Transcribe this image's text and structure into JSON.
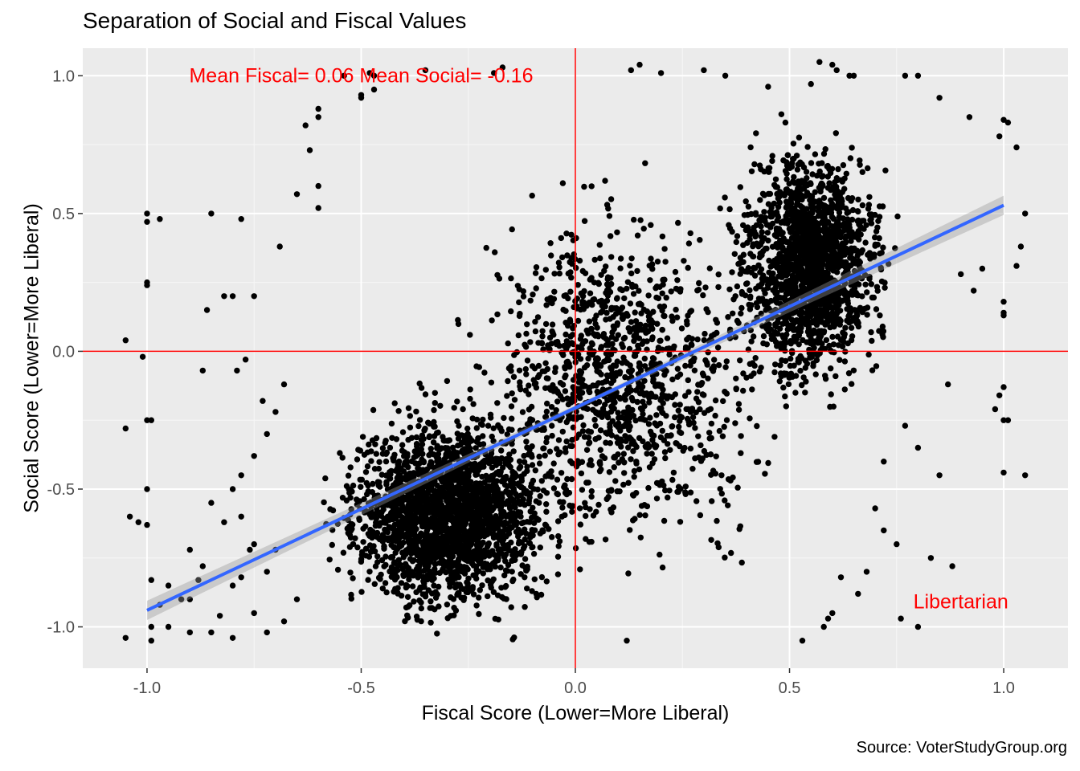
{
  "chart_data": {
    "type": "scatter",
    "title": "Separation of Social and Fiscal Values",
    "xlabel": "Fiscal Score (Lower=More Liberal)",
    "ylabel": "Social Score (Lower=More Liberal)",
    "caption": "Source: VoterStudyGroup.org",
    "xlim": [
      -1.15,
      1.15
    ],
    "ylim": [
      -1.15,
      1.1
    ],
    "x_ticks": [
      -1.0,
      -0.5,
      0.0,
      0.5,
      1.0
    ],
    "x_tick_labels": [
      "-1.0",
      "-0.5",
      "0.0",
      "0.5",
      "1.0"
    ],
    "y_ticks": [
      -1.0,
      -0.5,
      0.0,
      0.5,
      1.0
    ],
    "y_tick_labels": [
      "-1.0",
      "-0.5",
      "0.0",
      "0.5",
      "1.0"
    ],
    "grid": true,
    "reference_lines": {
      "vertical_x": 0.0,
      "horizontal_y": 0.0,
      "color": "#ff0000"
    },
    "regression_line": {
      "x_start": -1.0,
      "y_start": -0.94,
      "x_end": 1.0,
      "y_end": 0.53,
      "color": "#3366ff"
    },
    "annotations": [
      {
        "text": "Mean Fiscal= 0.06 Mean Social= -0.16",
        "x": -0.5,
        "y": 1.0,
        "color": "#ff0000"
      },
      {
        "text": "Libertarian",
        "x": 0.9,
        "y": -0.91,
        "color": "#ff0000"
      }
    ],
    "points": [
      [
        -1.05,
        -1.04
      ],
      [
        -1.05,
        -0.28
      ],
      [
        -1.05,
        0.04
      ],
      [
        -1.04,
        -0.6
      ],
      [
        -1.02,
        -0.62
      ],
      [
        -1.01,
        -0.02
      ],
      [
        -1.0,
        0.5
      ],
      [
        -1.0,
        0.47
      ],
      [
        -1.0,
        0.25
      ],
      [
        -1.0,
        0.24
      ],
      [
        -1.0,
        -0.25
      ],
      [
        -1.0,
        -0.5
      ],
      [
        -1.0,
        -0.63
      ],
      [
        -0.99,
        -0.25
      ],
      [
        -0.99,
        -1.05
      ],
      [
        -0.99,
        -1.0
      ],
      [
        -0.99,
        -0.83
      ],
      [
        -0.97,
        0.48
      ],
      [
        -0.97,
        -0.92
      ],
      [
        -0.95,
        -1.0
      ],
      [
        -0.85,
        0.5
      ],
      [
        -0.86,
        0.15
      ],
      [
        -0.82,
        0.2
      ],
      [
        -0.8,
        0.2
      ],
      [
        -0.79,
        -0.07
      ],
      [
        -0.78,
        0.48
      ],
      [
        -0.77,
        -0.03
      ],
      [
        -0.75,
        0.2
      ],
      [
        -0.87,
        -0.07
      ],
      [
        -0.73,
        -0.18
      ],
      [
        -0.6,
        0.85
      ],
      [
        -0.6,
        0.88
      ],
      [
        -0.63,
        0.82
      ],
      [
        -0.62,
        0.73
      ],
      [
        -0.5,
        0.93
      ],
      [
        -0.47,
        1.0
      ],
      [
        -0.48,
        1.01
      ],
      [
        -0.47,
        0.95
      ],
      [
        -0.35,
        1.02
      ],
      [
        -0.19,
        1.01
      ],
      [
        -0.17,
        1.03
      ],
      [
        -0.54,
        1.0
      ],
      [
        -0.65,
        0.57
      ],
      [
        -0.6,
        0.6
      ],
      [
        -0.6,
        0.52
      ],
      [
        -0.69,
        0.38
      ],
      [
        -0.5,
        0.92
      ],
      [
        0.15,
        1.04
      ],
      [
        0.13,
        1.02
      ],
      [
        0.2,
        1.01
      ],
      [
        0.3,
        1.02
      ],
      [
        0.35,
        1.0
      ],
      [
        0.57,
        1.05
      ],
      [
        0.6,
        1.04
      ],
      [
        0.61,
        1.02
      ],
      [
        0.64,
        1.0
      ],
      [
        0.65,
        1.0
      ],
      [
        0.45,
        0.96
      ],
      [
        0.55,
        0.97
      ],
      [
        0.77,
        1.0
      ],
      [
        0.8,
        1.0
      ],
      [
        0.85,
        0.92
      ],
      [
        0.92,
        0.85
      ],
      [
        1.0,
        0.84
      ],
      [
        1.01,
        0.83
      ],
      [
        0.99,
        0.78
      ],
      [
        1.03,
        0.74
      ],
      [
        1.05,
        0.5
      ],
      [
        1.04,
        0.38
      ],
      [
        1.03,
        0.31
      ],
      [
        1.0,
        0.18
      ],
      [
        1.0,
        0.13
      ],
      [
        0.99,
        -0.16
      ],
      [
        1.0,
        -0.13
      ],
      [
        1.0,
        0.14
      ],
      [
        0.98,
        -0.21
      ],
      [
        1.01,
        -0.25
      ],
      [
        1.0,
        -0.25
      ],
      [
        1.0,
        -0.44
      ],
      [
        1.05,
        -0.45
      ],
      [
        0.95,
        0.3
      ],
      [
        0.93,
        0.22
      ],
      [
        0.9,
        0.28
      ],
      [
        0.87,
        -0.12
      ],
      [
        0.88,
        -0.78
      ],
      [
        0.83,
        -0.75
      ],
      [
        0.76,
        -0.97
      ],
      [
        0.8,
        -1.0
      ],
      [
        0.6,
        -0.95
      ],
      [
        0.59,
        -0.97
      ],
      [
        0.58,
        -1.0
      ],
      [
        0.53,
        -1.05
      ],
      [
        0.12,
        -1.05
      ],
      [
        0.7,
        -0.57
      ],
      [
        0.72,
        -0.65
      ],
      [
        0.75,
        -0.7
      ],
      [
        0.72,
        -0.4
      ],
      [
        0.77,
        -0.27
      ],
      [
        0.85,
        -0.45
      ],
      [
        0.8,
        -0.35
      ],
      [
        0.68,
        -0.8
      ],
      [
        0.66,
        -0.88
      ],
      [
        0.62,
        -0.82
      ],
      [
        -0.7,
        -0.72
      ],
      [
        -0.72,
        -0.8
      ],
      [
        -0.75,
        -0.7
      ],
      [
        -0.8,
        -0.85
      ],
      [
        -0.78,
        -0.82
      ],
      [
        -0.83,
        -0.96
      ],
      [
        -0.85,
        -1.02
      ],
      [
        -0.8,
        -1.04
      ],
      [
        -0.65,
        -0.9
      ],
      [
        -0.68,
        -0.98
      ],
      [
        -0.72,
        -1.02
      ],
      [
        -0.75,
        -0.95
      ],
      [
        -0.9,
        -0.9
      ],
      [
        -0.88,
        -0.83
      ],
      [
        -0.92,
        -0.9
      ],
      [
        -0.9,
        -1.02
      ],
      [
        -0.85,
        -0.55
      ],
      [
        -0.82,
        -0.62
      ],
      [
        -0.8,
        -0.5
      ],
      [
        -0.78,
        -0.45
      ],
      [
        -0.75,
        -0.38
      ],
      [
        -0.72,
        -0.3
      ],
      [
        -0.7,
        -0.22
      ],
      [
        -0.68,
        -0.12
      ],
      [
        -0.78,
        -0.6
      ],
      [
        -0.76,
        -0.72
      ],
      [
        -0.9,
        -0.72
      ],
      [
        -0.87,
        -0.78
      ],
      [
        -0.95,
        -0.85
      ]
    ],
    "dense_points": "several thousand additional black points forming a cloud spanning x -0.7 to 0.9 and y -1.05 to 1.0, densest around (-0.3,-0.6) and (0.6,0.4)"
  }
}
